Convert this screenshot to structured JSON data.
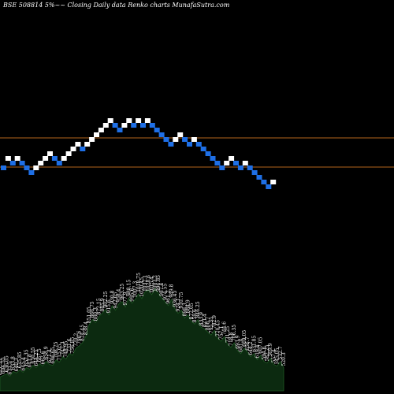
{
  "chart_data": {
    "type": "renko",
    "title": "BSE 508814  5%~~ Closing Daily data  Renko  charts MunafaSutra.com",
    "colors": {
      "background": "#000000",
      "up_brick": "#ffffff",
      "down_brick": "#1e6fe6",
      "level_line": "#b5651d",
      "volume_fill": "#0c2a10",
      "volume_line": "#1f5a24"
    },
    "levels": [
      175,
      212
    ],
    "bricks": [
      {
        "dir": "down",
        "y": 213
      },
      {
        "dir": "up",
        "y": 201
      },
      {
        "dir": "down",
        "y": 207
      },
      {
        "dir": "up",
        "y": 201
      },
      {
        "dir": "down",
        "y": 207
      },
      {
        "dir": "down",
        "y": 213
      },
      {
        "dir": "down",
        "y": 219
      },
      {
        "dir": "up",
        "y": 213
      },
      {
        "dir": "up",
        "y": 207
      },
      {
        "dir": "up",
        "y": 201
      },
      {
        "dir": "up",
        "y": 195
      },
      {
        "dir": "down",
        "y": 201
      },
      {
        "dir": "down",
        "y": 207
      },
      {
        "dir": "up",
        "y": 201
      },
      {
        "dir": "up",
        "y": 195
      },
      {
        "dir": "up",
        "y": 189
      },
      {
        "dir": "up",
        "y": 183
      },
      {
        "dir": "down",
        "y": 189
      },
      {
        "dir": "up",
        "y": 183
      },
      {
        "dir": "up",
        "y": 177
      },
      {
        "dir": "up",
        "y": 171
      },
      {
        "dir": "up",
        "y": 165
      },
      {
        "dir": "up",
        "y": 159
      },
      {
        "dir": "up",
        "y": 153
      },
      {
        "dir": "down",
        "y": 159
      },
      {
        "dir": "down",
        "y": 165
      },
      {
        "dir": "up",
        "y": 159
      },
      {
        "dir": "up",
        "y": 153
      },
      {
        "dir": "down",
        "y": 159
      },
      {
        "dir": "up",
        "y": 153
      },
      {
        "dir": "down",
        "y": 159
      },
      {
        "dir": "up",
        "y": 153
      },
      {
        "dir": "down",
        "y": 159
      },
      {
        "dir": "down",
        "y": 165
      },
      {
        "dir": "down",
        "y": 171
      },
      {
        "dir": "down",
        "y": 177
      },
      {
        "dir": "down",
        "y": 183
      },
      {
        "dir": "up",
        "y": 177
      },
      {
        "dir": "up",
        "y": 171
      },
      {
        "dir": "down",
        "y": 177
      },
      {
        "dir": "down",
        "y": 183
      },
      {
        "dir": "up",
        "y": 177
      },
      {
        "dir": "down",
        "y": 183
      },
      {
        "dir": "down",
        "y": 189
      },
      {
        "dir": "down",
        "y": 195
      },
      {
        "dir": "down",
        "y": 201
      },
      {
        "dir": "down",
        "y": 207
      },
      {
        "dir": "down",
        "y": 213
      },
      {
        "dir": "up",
        "y": 207
      },
      {
        "dir": "up",
        "y": 201
      },
      {
        "dir": "down",
        "y": 207
      },
      {
        "dir": "down",
        "y": 213
      },
      {
        "dir": "up",
        "y": 207
      },
      {
        "dir": "down",
        "y": 213
      },
      {
        "dir": "down",
        "y": 219
      },
      {
        "dir": "down",
        "y": 225
      },
      {
        "dir": "down",
        "y": 231
      },
      {
        "dir": "down",
        "y": 237
      },
      {
        "dir": "up",
        "y": 231
      }
    ],
    "volume": {
      "values": [
        18,
        20,
        22,
        19,
        25,
        23,
        27,
        24,
        30,
        28,
        33,
        30,
        35,
        32,
        38,
        34,
        33,
        40,
        37,
        44,
        41,
        48,
        46,
        55,
        58,
        62,
        70,
        85,
        92,
        88,
        96,
        100,
        105,
        98,
        110,
        104,
        112,
        115,
        108,
        120,
        113,
        118,
        125,
        119,
        128,
        130,
        124,
        132,
        126,
        120,
        115,
        110,
        118,
        106,
        100,
        104,
        94,
        98,
        90,
        86,
        92,
        82,
        80,
        76,
        72,
        78,
        68,
        64,
        70,
        60,
        56,
        62,
        52,
        48,
        55,
        50,
        44,
        48,
        40,
        46,
        38,
        36,
        42,
        34,
        32,
        38,
        30
      ],
      "labels": [
        "621.35",
        "604.55",
        "636.05",
        "631.5",
        "633.8",
        "640.3",
        "635.85",
        "645.4",
        "652.35",
        "641.8",
        "650.55",
        "644.25",
        "667.5",
        "662.6",
        "658.9",
        "671.4",
        "686.65",
        "708.75",
        "715.05",
        "742.3",
        "748.95",
        "731.6",
        "756.85",
        "770.2",
        "790.6",
        "824.45",
        "838.4",
        "851.05",
        "866.75",
        "880.3",
        "872.15",
        "885.9",
        "902.25",
        "915.6",
        "930.8",
        "942.05",
        "958.4",
        "963.25",
        "977.9",
        "988.15",
        "995.6",
        "1007.3",
        "1018.75",
        "1020.45",
        "1032.1",
        "1028.6",
        "1015.4",
        "1003.2",
        "996.85",
        "987.4",
        "974.55",
        "961.2",
        "949.8",
        "936.45",
        "924.1",
        "910.75",
        "898.3",
        "884.9",
        "872.05",
        "859.6",
        "846.25",
        "833.9",
        "821.4",
        "808.7",
        "795.35",
        "782.9",
        "770.45",
        "757.1",
        "744.6",
        "731.25",
        "718.8",
        "706.35",
        "693.9",
        "681.4",
        "669.05",
        "656.7",
        "644.2",
        "631.85",
        "619.4",
        "607.05",
        "594.6",
        "582.25",
        "569.9",
        "557.4",
        "545.05",
        "532.7",
        "520.3"
      ]
    }
  }
}
